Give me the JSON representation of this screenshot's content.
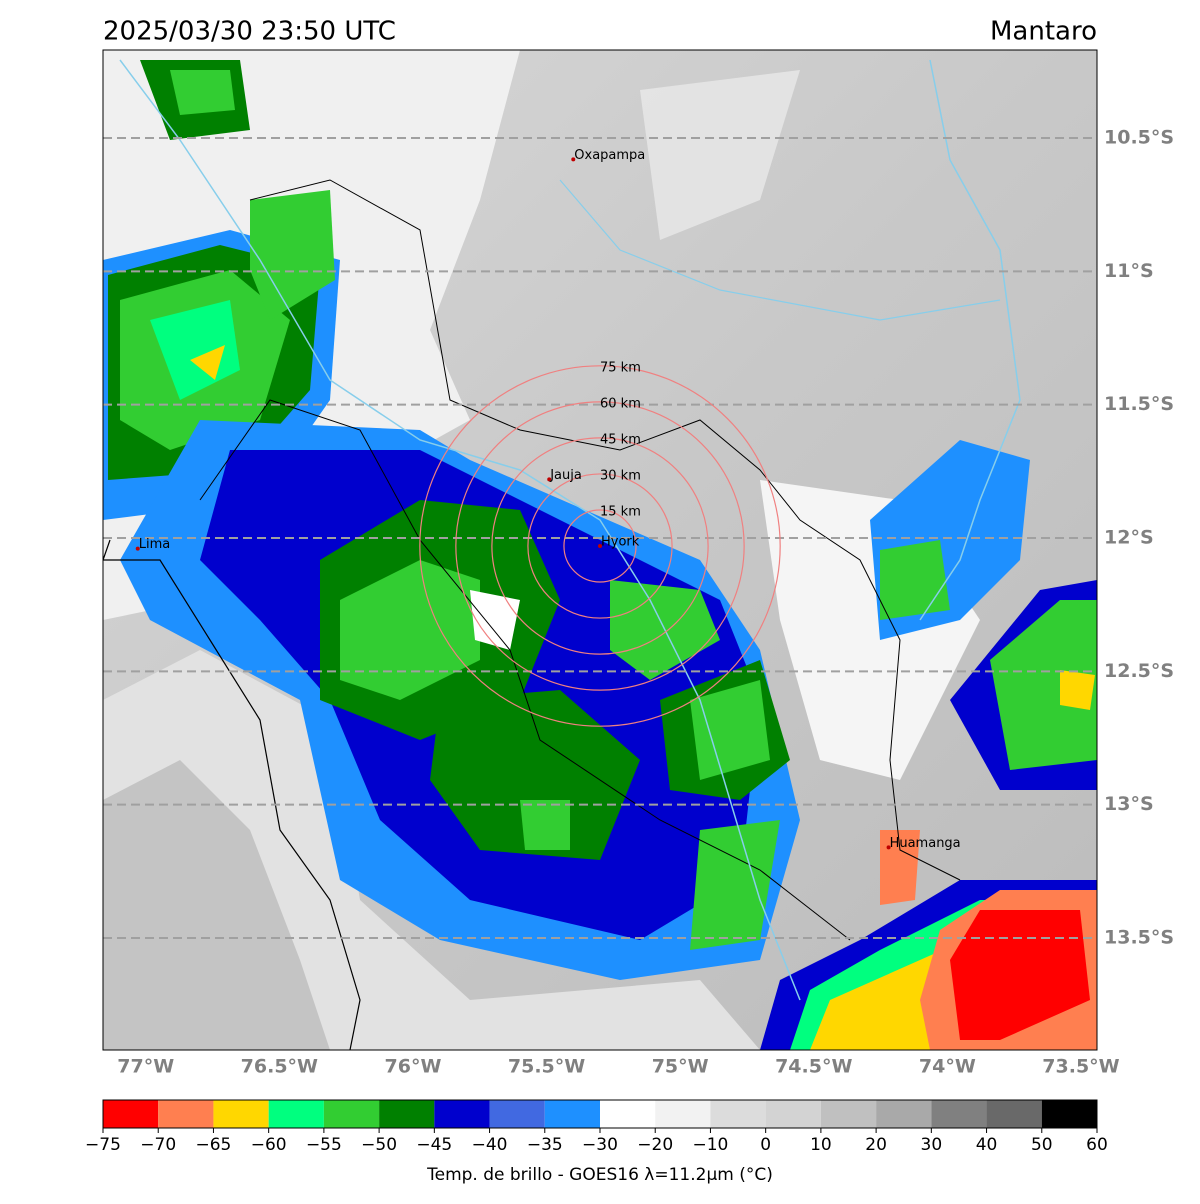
{
  "header": {
    "datetime": "2025/03/30 23:50 UTC",
    "region": "Mantaro"
  },
  "map": {
    "lon_lim": [
      77.16,
      73.44
    ],
    "lat_lim": [
      10.17,
      13.92
    ],
    "lat_ticks": [
      {
        "value": 10.5,
        "label": "10.5°S"
      },
      {
        "value": 11,
        "label": "11°S"
      },
      {
        "value": 11.5,
        "label": "11.5°S"
      },
      {
        "value": 12,
        "label": "12°S"
      },
      {
        "value": 12.5,
        "label": "12.5°S"
      },
      {
        "value": 13,
        "label": "13°S"
      },
      {
        "value": 13.5,
        "label": "13.5°S"
      }
    ],
    "lon_ticks": [
      {
        "value": 77,
        "label": "77°W"
      },
      {
        "value": 76.5,
        "label": "76.5°W"
      },
      {
        "value": 76,
        "label": "76°W"
      },
      {
        "value": 75.5,
        "label": "75.5°W"
      },
      {
        "value": 75,
        "label": "75°W"
      },
      {
        "value": 74.5,
        "label": "74.5°W"
      },
      {
        "value": 74,
        "label": "74°W"
      },
      {
        "value": 73.5,
        "label": "73.5°W"
      }
    ],
    "cities": [
      {
        "name": "Oxapampa",
        "lon": 75.4,
        "lat": 10.58
      },
      {
        "name": "Lima",
        "lon": 77.03,
        "lat": 12.04
      },
      {
        "name": "Jauja",
        "lon": 75.49,
        "lat": 11.78
      },
      {
        "name": "Hyork",
        "lon": 75.3,
        "lat": 12.03
      },
      {
        "name": "Huamanga",
        "lon": 74.22,
        "lat": 13.16
      }
    ],
    "rings": [
      {
        "value": 15,
        "label": "15 km"
      },
      {
        "value": 30,
        "label": "30 km"
      },
      {
        "value": 45,
        "label": "45 km"
      },
      {
        "value": 60,
        "label": "60 km"
      },
      {
        "value": 75,
        "label": "75 km"
      }
    ]
  },
  "colorbar": {
    "label": "Temp. de brillo - GOES16 λ=11.2μm (°C)",
    "ticks": [
      {
        "value": -75,
        "label": "−75"
      },
      {
        "value": -70,
        "label": "−70"
      },
      {
        "value": -65,
        "label": "−65"
      },
      {
        "value": -60,
        "label": "−60"
      },
      {
        "value": -55,
        "label": "−55"
      },
      {
        "value": -50,
        "label": "−50"
      },
      {
        "value": -45,
        "label": "−45"
      },
      {
        "value": -40,
        "label": "−40"
      },
      {
        "value": -35,
        "label": "−35"
      },
      {
        "value": -30,
        "label": "−30"
      },
      {
        "value": -20,
        "label": "−20"
      },
      {
        "value": -10,
        "label": "−10"
      },
      0,
      10,
      20,
      30,
      40,
      50,
      60
    ],
    "colors": [
      "#ff0000",
      "#ff7f50",
      "#ffd700",
      "#00ff7f",
      "#32cd32",
      "#008000",
      "#0000cd",
      "#4169e1",
      "#1e90ff",
      "#ffffff",
      "#f2f2f2",
      "#dcdcdc",
      "#d3d3d3",
      "#c0c0c0",
      "#a9a9a9",
      "#808080",
      "#696969",
      "#000000"
    ]
  }
}
